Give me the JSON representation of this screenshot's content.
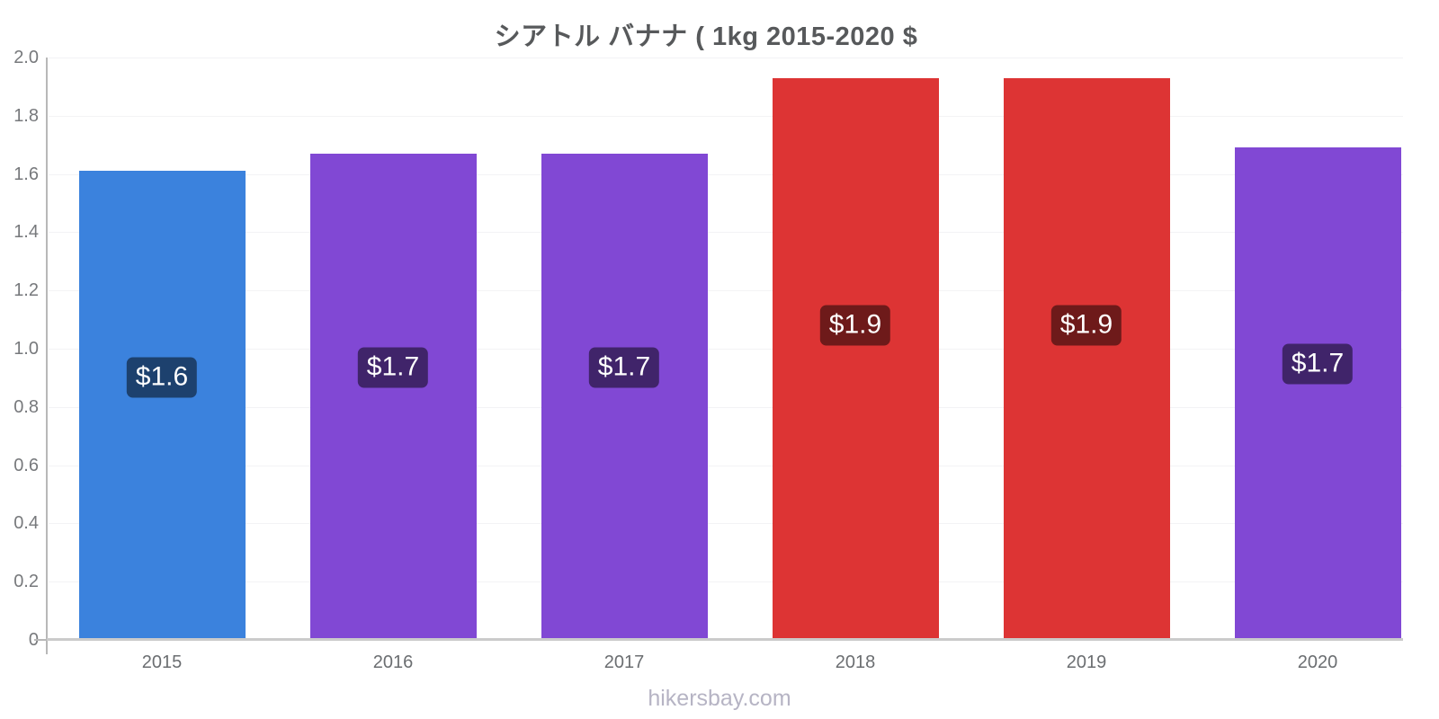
{
  "page": {
    "title": "シアトル バナナ ( 1kg 2015-2020 $",
    "footer": "hikersbay.com"
  },
  "colors": {
    "title_text": "#57595b",
    "axis_text": "#77797c",
    "x_axis_text": "#6b6e71",
    "axis_line": "#b8b8b8",
    "baseline": "#cbcbcb",
    "gridline": "#f3f3f5",
    "bar_blue": "#3b82dd",
    "bar_purple": "#8148d4",
    "bar_red": "#dd3434",
    "value_label_text": "#ffffff",
    "value_label_overlay": "rgba(0,0,0,0.5)",
    "footer_text": "#b6b4c4"
  },
  "chart_data": {
    "type": "bar",
    "title": "シアトル バナナ ( 1kg 2015-2020 $",
    "categories": [
      "2015",
      "2016",
      "2017",
      "2018",
      "2019",
      "2020"
    ],
    "values": [
      1.61,
      1.67,
      1.67,
      1.93,
      1.93,
      1.69
    ],
    "bar_labels": [
      "$1.6",
      "$1.7",
      "$1.7",
      "$1.9",
      "$1.9",
      "$1.7"
    ],
    "bar_colors": [
      "#3b82dd",
      "#8148d4",
      "#8148d4",
      "#dd3434",
      "#dd3434",
      "#8148d4"
    ],
    "xlabel": "",
    "ylabel": "",
    "ylim": [
      0,
      2.0
    ],
    "ytick_step": 0.2,
    "ytick_labels": [
      "0",
      "0.2",
      "0.4",
      "0.6",
      "0.8",
      "1.0",
      "1.2",
      "1.4",
      "1.6",
      "1.8",
      "2.0"
    ],
    "grid": true,
    "legend_position": "none"
  }
}
